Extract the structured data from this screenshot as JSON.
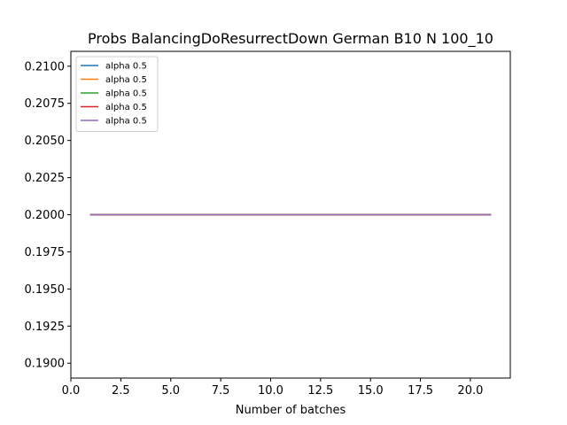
{
  "chart_data": {
    "type": "line",
    "title": "Probs BalancingDoResurrectDown German B10 N 100_10",
    "xlabel": "Number of batches",
    "ylabel": "",
    "xlim": [
      0,
      22
    ],
    "ylim": [
      0.189,
      0.211
    ],
    "xticks": [
      0.0,
      2.5,
      5.0,
      7.5,
      10.0,
      12.5,
      15.0,
      17.5,
      20.0
    ],
    "xtick_labels": [
      "0.0",
      "2.5",
      "5.0",
      "7.5",
      "10.0",
      "12.5",
      "15.0",
      "17.5",
      "20.0"
    ],
    "yticks": [
      0.19,
      0.1925,
      0.195,
      0.1975,
      0.2,
      0.2025,
      0.205,
      0.2075,
      0.21
    ],
    "ytick_labels": [
      "0.1900",
      "0.1925",
      "0.1950",
      "0.1975",
      "0.2000",
      "0.2025",
      "0.2050",
      "0.2075",
      "0.2100"
    ],
    "grid": false,
    "legend_position": "top-left",
    "x": [
      1,
      2,
      3,
      4,
      5,
      6,
      7,
      8,
      9,
      10,
      11,
      12,
      13,
      14,
      15,
      16,
      17,
      18,
      19,
      20,
      21
    ],
    "series": [
      {
        "name": "alpha 0.5",
        "color": "#1f77b4",
        "values": [
          0.2,
          0.2,
          0.2,
          0.2,
          0.2,
          0.2,
          0.2,
          0.2,
          0.2,
          0.2,
          0.2,
          0.2,
          0.2,
          0.2,
          0.2,
          0.2,
          0.2,
          0.2,
          0.2,
          0.2,
          0.2
        ]
      },
      {
        "name": "alpha 0.5",
        "color": "#ff7f0e",
        "values": [
          0.2,
          0.2,
          0.2,
          0.2,
          0.2,
          0.2,
          0.2,
          0.2,
          0.2,
          0.2,
          0.2,
          0.2,
          0.2,
          0.2,
          0.2,
          0.2,
          0.2,
          0.2,
          0.2,
          0.2,
          0.2
        ]
      },
      {
        "name": "alpha 0.5",
        "color": "#2ca02c",
        "values": [
          0.2,
          0.2,
          0.2,
          0.2,
          0.2,
          0.2,
          0.2,
          0.2,
          0.2,
          0.2,
          0.2,
          0.2,
          0.2,
          0.2,
          0.2,
          0.2,
          0.2,
          0.2,
          0.2,
          0.2,
          0.2
        ]
      },
      {
        "name": "alpha 0.5",
        "color": "#d62728",
        "values": [
          0.2,
          0.2,
          0.2,
          0.2,
          0.2,
          0.2,
          0.2,
          0.2,
          0.2,
          0.2,
          0.2,
          0.2,
          0.2,
          0.2,
          0.2,
          0.2,
          0.2,
          0.2,
          0.2,
          0.2,
          0.2
        ]
      },
      {
        "name": "alpha 0.5",
        "color": "#9467bd",
        "values": [
          0.2,
          0.2,
          0.2,
          0.2,
          0.2,
          0.2,
          0.2,
          0.2,
          0.2,
          0.2,
          0.2,
          0.2,
          0.2,
          0.2,
          0.2,
          0.2,
          0.2,
          0.2,
          0.2,
          0.2,
          0.2
        ]
      }
    ]
  }
}
